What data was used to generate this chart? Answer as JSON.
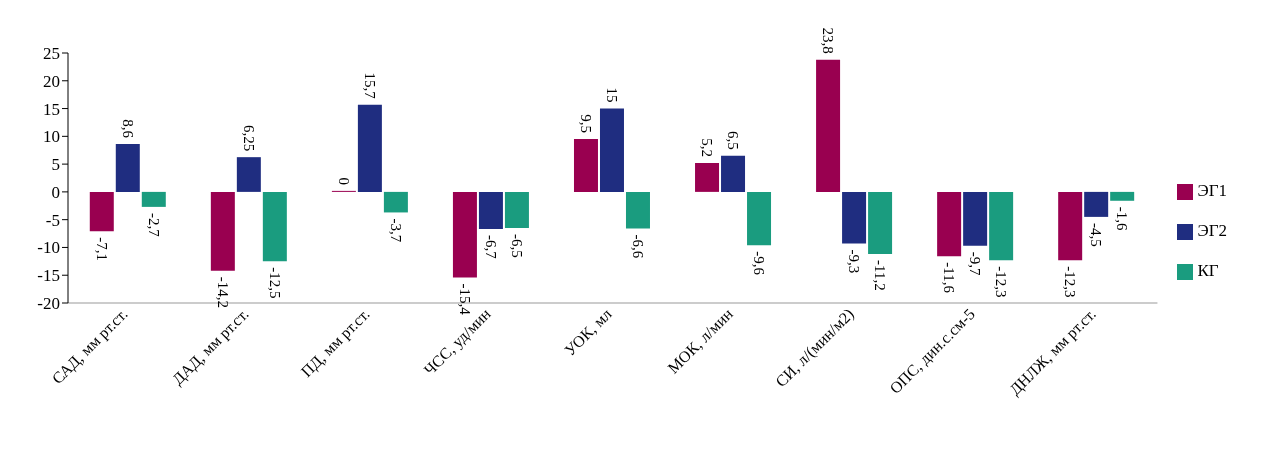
{
  "chart_data": {
    "type": "bar",
    "categories": [
      "САД, мм рт.ст.",
      "ДАД, мм рт.ст.",
      "ПД, мм рт.ст.",
      "ЧСС, уд/мин",
      "УОК, мл",
      "МОК, л/мин",
      "СИ, л/(мин/м2)",
      "ОПС, дин.с.см-5",
      "ДНЛЖ, мм рт.ст."
    ],
    "series": [
      {
        "name": "ЭГ1",
        "color": "#990050",
        "values": [
          -7.1,
          -14.2,
          0,
          -15.4,
          9.5,
          5.2,
          23.8,
          -11.6,
          -12.3
        ],
        "value_labels": [
          "-7,1",
          "-14,2",
          "0",
          "-15,4",
          "9,5",
          "5,2",
          "23,8",
          "-11,6",
          "-12,3"
        ]
      },
      {
        "name": "ЭГ2",
        "color": "#1f2d80",
        "values": [
          8.6,
          6.25,
          15.7,
          -6.7,
          15,
          6.5,
          -9.3,
          -9.7,
          -4.5
        ],
        "value_labels": [
          "8,6",
          "6,25",
          "15,7",
          "-6,7",
          "15",
          "6,5",
          "-9,3",
          "-9,7",
          "-4,5"
        ]
      },
      {
        "name": "КГ",
        "color": "#1a9c7f",
        "values": [
          -2.7,
          -12.5,
          -3.7,
          -6.5,
          -6.6,
          -9.6,
          -11.2,
          -12.3,
          -1.6
        ],
        "value_labels": [
          "-2,7",
          "-12,5",
          "-3,7",
          "-6,5",
          "-6,6",
          "-9,6",
          "-11,2",
          "-12,3",
          "-1,6"
        ]
      }
    ],
    "ylim": [
      -20,
      25
    ],
    "yticks": [
      -20,
      -15,
      -10,
      -5,
      0,
      5,
      10,
      15,
      20,
      25
    ],
    "grid": false,
    "legend": "right"
  }
}
